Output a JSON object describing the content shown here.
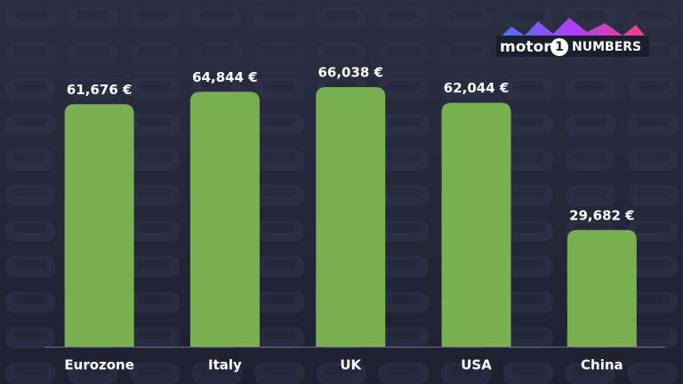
{
  "chart_data": {
    "type": "bar",
    "categories": [
      "Eurozone",
      "Italy",
      "UK",
      "USA",
      "China"
    ],
    "values": [
      61676,
      64844,
      66038,
      62044,
      29682
    ],
    "value_labels": [
      "61,676 €",
      "64,844 €",
      "66,038 €",
      "62,044 €",
      "29,682 €"
    ],
    "color": "#79b04f",
    "logo": [
      "motor",
      "1",
      "NUMBERS"
    ]
  }
}
